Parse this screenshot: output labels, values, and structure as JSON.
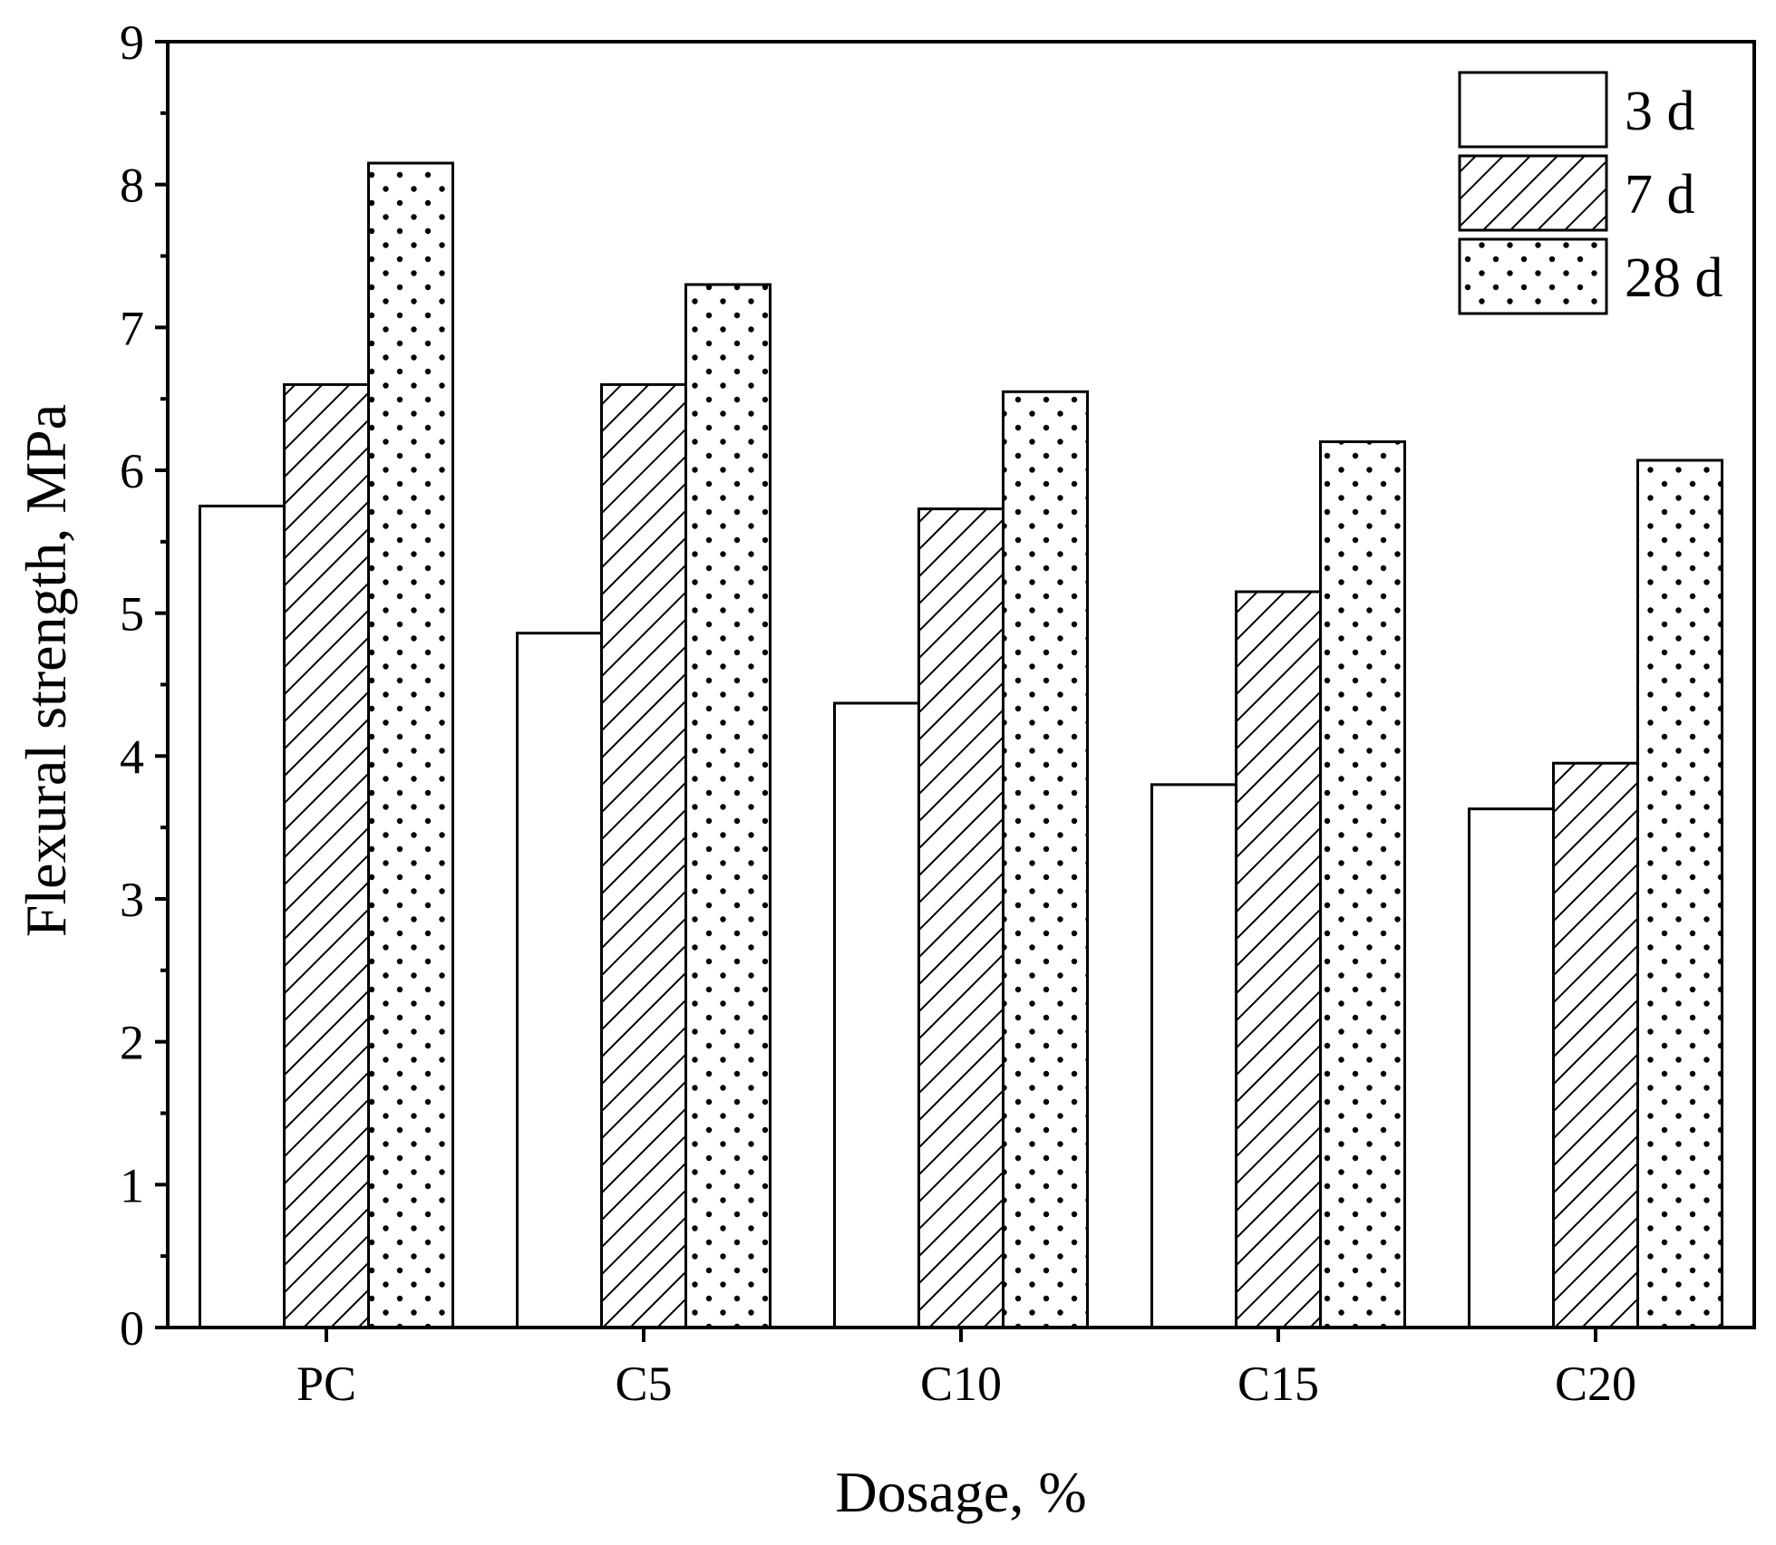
{
  "chart_data": {
    "type": "bar",
    "title": "",
    "xlabel": "Dosage, %",
    "ylabel": "Flexural strength, MPa",
    "ylim": [
      0,
      9
    ],
    "yticks": [
      0,
      1,
      2,
      3,
      4,
      5,
      6,
      7,
      8,
      9
    ],
    "categories": [
      "PC",
      "C5",
      "C10",
      "C15",
      "C20"
    ],
    "series": [
      {
        "name": "3 d",
        "pattern": "solid",
        "values": [
          5.75,
          4.86,
          4.37,
          3.8,
          3.63
        ]
      },
      {
        "name": "7 d",
        "pattern": "hatch",
        "values": [
          6.6,
          6.6,
          5.73,
          5.15,
          3.95
        ]
      },
      {
        "name": "28 d",
        "pattern": "dots",
        "values": [
          8.15,
          7.3,
          6.55,
          6.2,
          6.07
        ]
      }
    ],
    "legend_position": "top-right",
    "grid": false
  }
}
